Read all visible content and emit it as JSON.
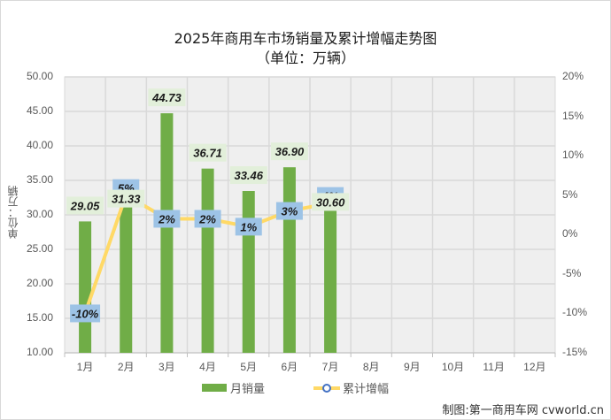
{
  "chart_data": {
    "type": "bar+line",
    "title": "2025年商用车市场销量及累计增幅走势图",
    "subtitle": "（单位：万辆）",
    "xlabel": "",
    "ylabel": "单位：万辆",
    "y2label": "",
    "categories": [
      "1月",
      "2月",
      "3月",
      "4月",
      "5月",
      "6月",
      "7月",
      "8月",
      "9月",
      "10月",
      "11月",
      "12月"
    ],
    "series": [
      {
        "name": "月销量",
        "type": "bar",
        "axis": "left",
        "color": "#70ad47",
        "values": [
          29.05,
          31.33,
          44.73,
          36.71,
          33.46,
          36.9,
          30.6,
          null,
          null,
          null,
          null,
          null
        ],
        "labels": [
          "29.05",
          "31.33",
          "44.73",
          "36.71",
          "33.46",
          "36.90",
          "30.60"
        ]
      },
      {
        "name": "累计增幅",
        "type": "line",
        "axis": "right",
        "color": "#ffd966",
        "values": [
          -10,
          5,
          2,
          2,
          1,
          3,
          4,
          null,
          null,
          null,
          null,
          null
        ],
        "labels": [
          "-10%",
          "5%",
          "2%",
          "2%",
          "1%",
          "3%",
          "4%"
        ]
      }
    ],
    "ylim": [
      10,
      50
    ],
    "yticks": [
      "50.00",
      "45.00",
      "40.00",
      "35.00",
      "30.00",
      "25.00",
      "20.00",
      "15.00",
      "10.00"
    ],
    "y2lim": [
      -15,
      20
    ],
    "y2ticks": [
      "20%",
      "15%",
      "10%",
      "5%",
      "0%",
      "-5%",
      "-10%",
      "-15%"
    ],
    "grid": true,
    "legend_position": "bottom"
  },
  "legend": {
    "bar_label": "月销量",
    "line_label": "累计增幅"
  },
  "credit": "制图:第一商用车网 cvworld.cn",
  "colors": {
    "bar": "#70ad47",
    "line": "#ffd966",
    "bar_label_bg": "#e2efda",
    "line_label_bg": "#9dc3e6",
    "plot_bg": "#efefef",
    "grid": "#d9d9d9"
  }
}
